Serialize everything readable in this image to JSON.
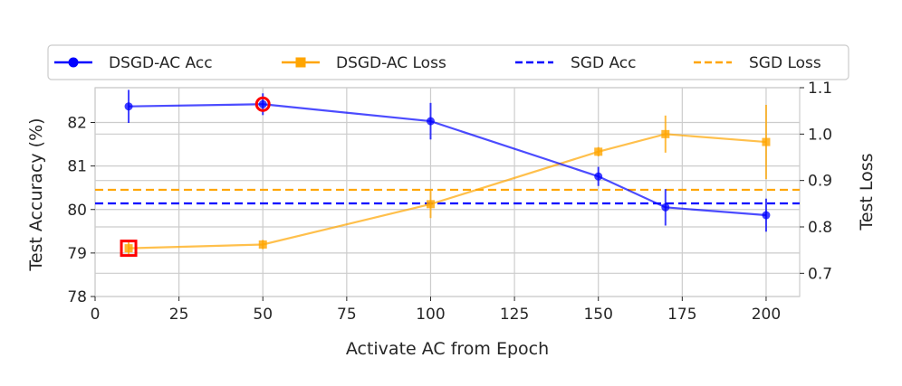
{
  "chart_data": {
    "type": "line",
    "xlabel": "Activate AC from Epoch",
    "ylabel_left": "Test Accuracy (%)",
    "ylabel_right": "Test Loss",
    "xlim": [
      0,
      210
    ],
    "ylim_left": [
      78,
      82.8
    ],
    "ylim_right": [
      0.65,
      1.1
    ],
    "x_ticks": [
      "0",
      "25",
      "50",
      "75",
      "100",
      "125",
      "150",
      "175",
      "200"
    ],
    "y_ticks_left": [
      "78",
      "79",
      "80",
      "81",
      "82"
    ],
    "y_ticks_right": [
      "0.7",
      "0.8",
      "0.9",
      "1.0",
      "1.1"
    ],
    "grid": true,
    "legend_position": "top",
    "series": [
      {
        "name": "DSGD-AC Acc",
        "axis": "left",
        "color": "#0000ff",
        "marker": "circle",
        "x": [
          10,
          50,
          100,
          150,
          170,
          200
        ],
        "y": [
          82.37,
          82.42,
          82.03,
          80.76,
          80.05,
          79.87
        ],
        "err": [
          0.38,
          0.25,
          0.42,
          0.22,
          0.42,
          0.38
        ],
        "highlight_x": 50
      },
      {
        "name": "DSGD-AC Loss",
        "axis": "right",
        "color": "#ffa500",
        "marker": "square",
        "x": [
          10,
          50,
          100,
          150,
          170,
          200
        ],
        "y": [
          0.754,
          0.762,
          0.849,
          0.962,
          1.0,
          0.983
        ],
        "err": [
          0.018,
          0.01,
          0.03,
          0.01,
          0.04,
          0.08
        ],
        "highlight_x": 10
      },
      {
        "name": "SGD Acc",
        "axis": "left",
        "color": "#0000ff",
        "style": "dashed",
        "value": 80.14
      },
      {
        "name": "SGD Loss",
        "axis": "right",
        "color": "#ffa500",
        "style": "dashed",
        "value": 0.88
      }
    ],
    "highlight_color": "#ff0000"
  }
}
